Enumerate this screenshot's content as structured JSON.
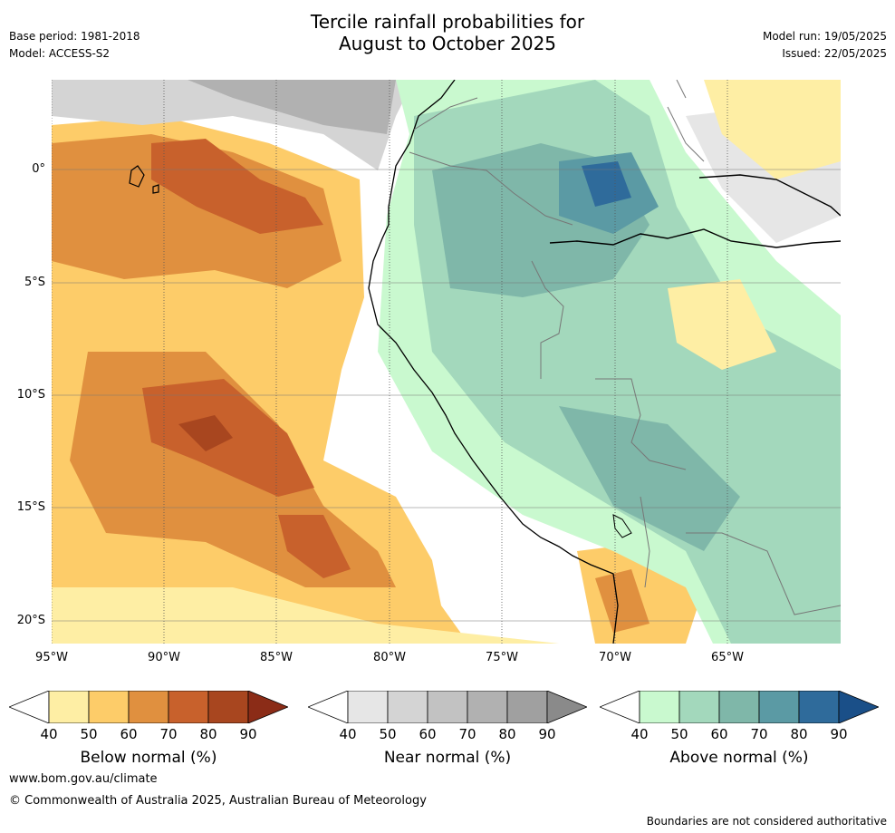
{
  "title": {
    "line1": "Tercile rainfall probabilities for",
    "line2": "August to October 2025"
  },
  "meta": {
    "base_period": "Base period: 1981-2018",
    "model": "Model: ACCESS-S2",
    "model_run": "Model run: 19/05/2025",
    "issued": "Issued: 22/05/2025"
  },
  "map": {
    "lat_labels": [
      "0°",
      "5°S",
      "10°S",
      "15°S",
      "20°S"
    ],
    "lon_labels": [
      "95°W",
      "90°W",
      "85°W",
      "80°W",
      "75°W",
      "70°W",
      "65°W"
    ]
  },
  "colorbars": [
    {
      "label": "Below normal (%)",
      "ticks": [
        "40",
        "50",
        "60",
        "70",
        "80",
        "90"
      ],
      "colors": [
        "#ffffff",
        "#feeea4",
        "#fdcc69",
        "#e0903f",
        "#c8612c",
        "#a8461f",
        "#8b2c17"
      ]
    },
    {
      "label": "Near normal (%)",
      "ticks": [
        "40",
        "50",
        "60",
        "70",
        "80",
        "90"
      ],
      "colors": [
        "#ffffff",
        "#e6e6e6",
        "#d4d4d4",
        "#c2c2c2",
        "#b1b1b1",
        "#a0a0a0",
        "#8a8a8a"
      ]
    },
    {
      "label": "Above normal (%)",
      "ticks": [
        "40",
        "50",
        "60",
        "70",
        "80",
        "90"
      ],
      "colors": [
        "#ffffff",
        "#c9f9cf",
        "#a3d8bc",
        "#7fb7a9",
        "#5b9aa4",
        "#2f6b9b",
        "#1a4f88"
      ]
    }
  ],
  "footer": {
    "website": "www.bom.gov.au/climate",
    "copyright": "© Commonwealth of Australia 2025, Australian Bureau of Meteorology",
    "disclaimer": "Boundaries are not considered authoritative"
  }
}
